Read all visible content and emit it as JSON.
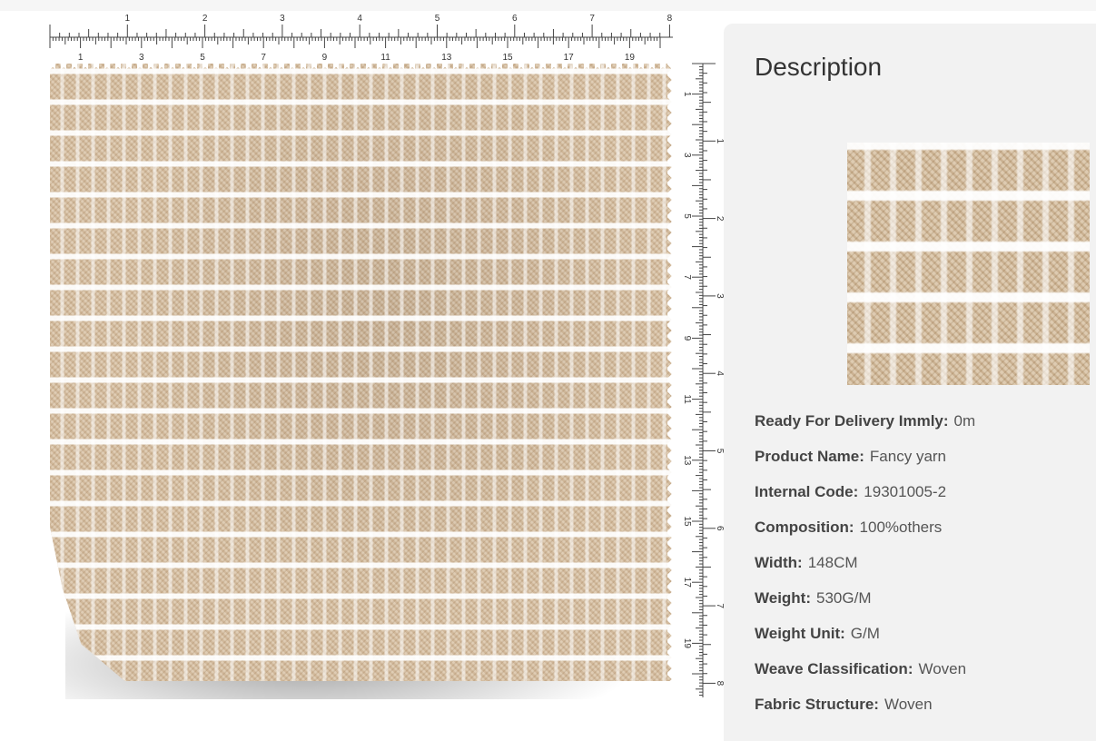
{
  "ruler": {
    "top_major_labels": [
      "1",
      "2",
      "3",
      "4",
      "5",
      "6",
      "7",
      "8"
    ],
    "top_minor_labels": [
      "1",
      "3",
      "5",
      "7",
      "9",
      "11",
      "13",
      "15",
      "17",
      "19"
    ],
    "right_major_labels": [
      "1",
      "2",
      "3",
      "4",
      "5",
      "6",
      "7",
      "8"
    ],
    "right_minor_labels": [
      "1",
      "3",
      "5",
      "7",
      "9",
      "11",
      "13",
      "15",
      "17",
      "19"
    ]
  },
  "fabric": {
    "base_color": "#d9c3a6",
    "stripe_color": "#ffffff",
    "icon": "fabric-swatch-image"
  },
  "description": {
    "title": "Description",
    "thumbnail_icon": "fabric-closeup-image",
    "specs": [
      {
        "label": "Ready For Delivery Immly:",
        "value": "0m"
      },
      {
        "label": "Product Name:",
        "value": "Fancy yarn"
      },
      {
        "label": "Internal Code:",
        "value": "19301005-2"
      },
      {
        "label": "Composition:",
        "value": "100%others"
      },
      {
        "label": "Width:",
        "value": "148CM"
      },
      {
        "label": "Weight:",
        "value": "530G/M"
      },
      {
        "label": "Weight Unit:",
        "value": "G/M"
      },
      {
        "label": "Weave Classification:",
        "value": "Woven"
      },
      {
        "label": "Fabric Structure:",
        "value": "Woven"
      }
    ]
  }
}
